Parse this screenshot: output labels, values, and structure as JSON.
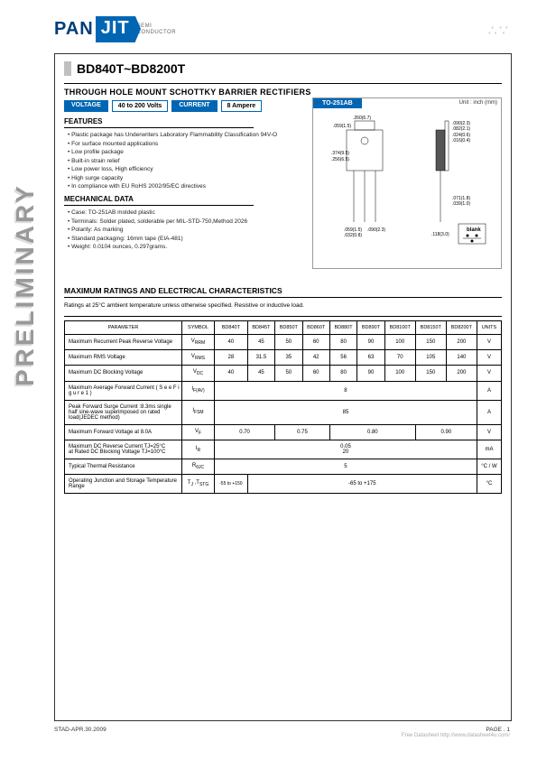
{
  "logo": {
    "left": "PAN",
    "right": "JIT",
    "sub1": "SEMI",
    "sub2": "CONDUCTOR"
  },
  "title": "BD840T~BD8200T",
  "subtitle": "THROUGH HOLE MOUNT SCHOTTKY BARRIER RECTIFIERS",
  "tags": {
    "voltage_label": "VOLTAGE",
    "voltage_value": "40 to 200  Volts",
    "current_label": "CURRENT",
    "current_value": "8 Ampere"
  },
  "package": {
    "name": "TO-251AB",
    "unit": "Unit : inch (mm)",
    "dims": {
      "a": ".260(6.7)",
      "b": ".090(2.3)",
      "c": ".059(1.5)",
      "d": ".082(2.1)",
      "e": ".374(9.5)",
      "f": ".256(6.5)",
      "g": ".024(0.6)",
      "h": ".016(0.4)",
      "i": ".071(1.8)",
      "j": ".039(1.0)",
      "k": ".059(1.5)",
      "l": ".032(0.8)",
      "m": ".118(3.0)",
      "n": ".090(2.3)",
      "p": ".193(4.9)"
    },
    "blank": "blank"
  },
  "features": {
    "head": "FEATURES",
    "items": [
      "Plastic package has Underwriters Laboratory Flammability Classification 94V-O",
      "For surface mounted applications",
      "Low profile package",
      "Built-in strain relief",
      "Low power loss, High efficiency",
      "High surge capacity",
      "In compliance with EU RoHS 2002/95/EC directives"
    ]
  },
  "mechanical": {
    "head": "MECHANICAL DATA",
    "items": [
      "Case: TO-251AB molded plastic",
      "Terminals: Solder plated, solderable per MIL-STD-750,Method 2026",
      "Polarity:  As marking",
      "Standard packaging: 16mm tape (EIA-481)",
      "Weight: 0.0104 ounces, 0.297grams."
    ]
  },
  "preliminary": "PRELIMINARY",
  "ratings": {
    "head": "MAXIMUM RATINGS AND ELECTRICAL CHARACTERISTICS",
    "note": "Ratings at 25°C ambient temperature unless otherwise specified. Resistive or inductive load.",
    "columns": [
      "PARAMETER",
      "SYMBOL",
      "BD840T",
      "BD845T",
      "BD850T",
      "BD860T",
      "BD880T",
      "BD890T",
      "BD8100T",
      "BD8150T",
      "BD8200T",
      "UNITS"
    ],
    "rows": [
      {
        "param": "Maximum Recurrent Peak Reverse Voltage",
        "sym": "V<sub>RRM</sub>",
        "cells": [
          "40",
          "45",
          "50",
          "60",
          "80",
          "90",
          "100",
          "150",
          "200"
        ],
        "unit": "V"
      },
      {
        "param": "Maximum RMS Voltage",
        "sym": "V<sub>RMS</sub>",
        "cells": [
          "28",
          "31.5",
          "35",
          "42",
          "56",
          "63",
          "70",
          "105",
          "140"
        ],
        "unit": "V"
      },
      {
        "param": "Maximum DC Blocking Voltage",
        "sym": "V<sub>DC</sub>",
        "cells": [
          "40",
          "45",
          "50",
          "60",
          "80",
          "90",
          "100",
          "150",
          "200"
        ],
        "unit": "V"
      },
      {
        "param": "Maximum Average Forward  Current  ( S e e  F i g u r e  1 )",
        "sym": "I<sub>F(AV)</sub>",
        "span": "8",
        "unit": "A"
      },
      {
        "param": "Peak Forward Surge Current :8.3ms single half sine-wave superimposed on rated load(JEDEC method)",
        "sym": "I<sub>FSM</sub>",
        "span": "85",
        "unit": "A"
      },
      {
        "param": "Maximum Forward Voltage at 8.0A",
        "sym": "V<sub>F</sub>",
        "groups": [
          [
            "0.70",
            2
          ],
          [
            "0.75",
            2
          ],
          [
            "0.80",
            3
          ],
          [
            "0.90",
            2
          ]
        ],
        "unit": "V"
      },
      {
        "param": "Maximum DC Reverse Current TJ=25°C\nat Rated DC Blocking Voltage TJ=100°C",
        "sym": "I<sub>R</sub>",
        "span": "0.05\n20",
        "unit": "mA"
      },
      {
        "param": "Typical Thermal Resistance",
        "sym": "R<sub>θJC</sub>",
        "span": "5",
        "unit": "°C / W"
      },
      {
        "param": "Operating Junction and Storage Temperature Range",
        "sym": "T<sub>J</sub> ,T<sub>STG</sub>",
        "first": "-55 to +150",
        "rest": "-65 to +175",
        "unit": "°C"
      }
    ]
  },
  "footer": {
    "left": "STAD-APR.30.2009",
    "right": "PAGE .  1"
  },
  "watermark": "Free Datasheet http://www.datasheet4u.com/"
}
